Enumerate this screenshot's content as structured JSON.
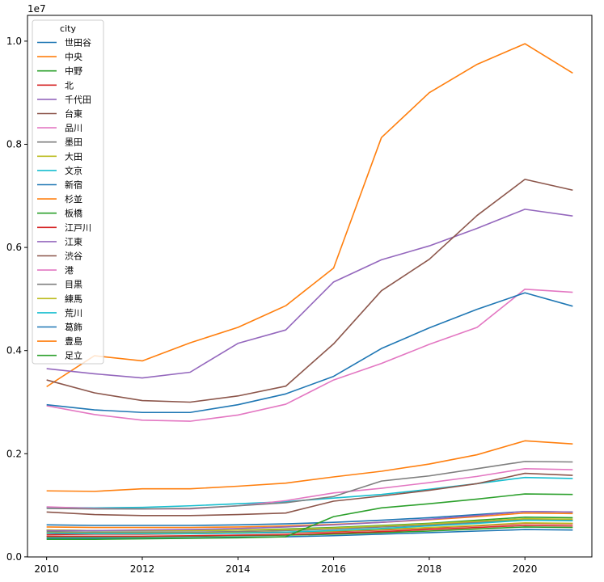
{
  "chart_data": {
    "type": "line",
    "offset_label": "1e7",
    "legend_title": "city",
    "legend_position": "upper-left",
    "grid": false,
    "x": [
      2010,
      2011,
      2012,
      2013,
      2014,
      2015,
      2016,
      2017,
      2018,
      2019,
      2020,
      2021
    ],
    "xlim": [
      2009.6,
      2021.4
    ],
    "ylim": [
      -0.00015,
      1.05
    ],
    "x_ticks": [
      2010,
      2012,
      2014,
      2016,
      2018,
      2020
    ],
    "y_ticks": [
      0.0,
      0.2,
      0.4,
      0.6,
      0.8,
      1.0
    ],
    "y_tick_labels": [
      "0.0",
      "0.2",
      "0.4",
      "0.6",
      "0.8",
      "1.0"
    ],
    "series": [
      {
        "name": "世田谷",
        "color": "#1f77b4",
        "values": [
          0.062,
          0.061,
          0.061,
          0.061,
          0.062,
          0.064,
          0.067,
          0.071,
          0.076,
          0.082,
          0.088,
          0.087
        ]
      },
      {
        "name": "中央",
        "color": "#ff7f0e",
        "values": [
          0.33,
          0.39,
          0.38,
          0.415,
          0.445,
          0.487,
          0.56,
          0.813,
          0.9,
          0.955,
          0.995,
          0.938
        ]
      },
      {
        "name": "中野",
        "color": "#2ca02c",
        "values": [
          0.052,
          0.051,
          0.051,
          0.051,
          0.052,
          0.054,
          0.057,
          0.061,
          0.065,
          0.071,
          0.077,
          0.076
        ]
      },
      {
        "name": "北",
        "color": "#d62728",
        "values": [
          0.043,
          0.044,
          0.044,
          0.045,
          0.046,
          0.047,
          0.049,
          0.052,
          0.056,
          0.06,
          0.065,
          0.064
        ]
      },
      {
        "name": "千代田",
        "color": "#9467bd",
        "values": [
          0.365,
          0.355,
          0.347,
          0.358,
          0.414,
          0.44,
          0.533,
          0.576,
          0.603,
          0.637,
          0.674,
          0.661
        ]
      },
      {
        "name": "台東",
        "color": "#8c564b",
        "values": [
          0.343,
          0.318,
          0.303,
          0.3,
          0.312,
          0.331,
          0.413,
          0.516,
          0.577,
          0.662,
          0.732,
          0.711
        ]
      },
      {
        "name": "品川",
        "color": "#e377c2",
        "values": [
          0.293,
          0.276,
          0.265,
          0.263,
          0.275,
          0.296,
          0.343,
          0.375,
          0.412,
          0.445,
          0.519,
          0.513
        ]
      },
      {
        "name": "墨田",
        "color": "#7f7f7f",
        "values": [
          0.049,
          0.048,
          0.048,
          0.048,
          0.049,
          0.051,
          0.054,
          0.058,
          0.062,
          0.067,
          0.072,
          0.071
        ]
      },
      {
        "name": "大田",
        "color": "#bcbd22",
        "values": [
          0.052,
          0.051,
          0.051,
          0.051,
          0.052,
          0.053,
          0.056,
          0.06,
          0.064,
          0.069,
          0.074,
          0.073
        ]
      },
      {
        "name": "文京",
        "color": "#17becf",
        "values": [
          0.096,
          0.095,
          0.096,
          0.099,
          0.103,
          0.107,
          0.114,
          0.121,
          0.131,
          0.142,
          0.154,
          0.152
        ]
      },
      {
        "name": "新宿",
        "color": "#1f77b4",
        "values": [
          0.295,
          0.285,
          0.28,
          0.28,
          0.295,
          0.316,
          0.35,
          0.404,
          0.444,
          0.48,
          0.512,
          0.486
        ]
      },
      {
        "name": "杉並",
        "color": "#ff7f0e",
        "values": [
          0.058,
          0.057,
          0.057,
          0.057,
          0.058,
          0.06,
          0.063,
          0.067,
          0.072,
          0.078,
          0.085,
          0.084
        ]
      },
      {
        "name": "板橋",
        "color": "#2ca02c",
        "values": [
          0.039,
          0.039,
          0.039,
          0.04,
          0.041,
          0.042,
          0.044,
          0.047,
          0.05,
          0.054,
          0.058,
          0.057
        ]
      },
      {
        "name": "江戸川",
        "color": "#d62728",
        "values": [
          0.04,
          0.04,
          0.04,
          0.041,
          0.042,
          0.043,
          0.046,
          0.049,
          0.053,
          0.057,
          0.061,
          0.06
        ]
      },
      {
        "name": "江東",
        "color": "#9467bd",
        "values": [
          0.051,
          0.051,
          0.052,
          0.053,
          0.055,
          0.058,
          0.062,
          0.067,
          0.073,
          0.08,
          0.088,
          0.087
        ]
      },
      {
        "name": "渋谷",
        "color": "#8c564b",
        "values": [
          0.087,
          0.082,
          0.08,
          0.08,
          0.082,
          0.085,
          0.108,
          0.118,
          0.129,
          0.142,
          0.162,
          0.158
        ]
      },
      {
        "name": "港",
        "color": "#e377c2",
        "values": [
          0.097,
          0.094,
          0.093,
          0.093,
          0.099,
          0.109,
          0.124,
          0.133,
          0.144,
          0.156,
          0.171,
          0.169
        ]
      },
      {
        "name": "目黒",
        "color": "#7f7f7f",
        "values": [
          0.094,
          0.093,
          0.093,
          0.094,
          0.099,
          0.105,
          0.117,
          0.147,
          0.157,
          0.171,
          0.185,
          0.184
        ]
      },
      {
        "name": "練馬",
        "color": "#bcbd22",
        "values": [
          0.047,
          0.046,
          0.046,
          0.046,
          0.047,
          0.048,
          0.05,
          0.053,
          0.057,
          0.061,
          0.066,
          0.065
        ]
      },
      {
        "name": "荒川",
        "color": "#17becf",
        "values": [
          0.046,
          0.045,
          0.045,
          0.045,
          0.046,
          0.048,
          0.051,
          0.055,
          0.06,
          0.065,
          0.071,
          0.07
        ]
      },
      {
        "name": "葛飾",
        "color": "#1f77b4",
        "values": [
          0.036,
          0.036,
          0.036,
          0.037,
          0.038,
          0.039,
          0.041,
          0.044,
          0.047,
          0.05,
          0.053,
          0.052
        ]
      },
      {
        "name": "豊島",
        "color": "#ff7f0e",
        "values": [
          0.128,
          0.127,
          0.132,
          0.132,
          0.137,
          0.143,
          0.155,
          0.166,
          0.18,
          0.198,
          0.225,
          0.219
        ]
      },
      {
        "name": "足立",
        "color": "#2ca02c",
        "values": [
          0.034,
          0.034,
          0.035,
          0.036,
          0.037,
          0.039,
          0.078,
          0.095,
          0.103,
          0.112,
          0.122,
          0.121
        ]
      }
    ]
  }
}
